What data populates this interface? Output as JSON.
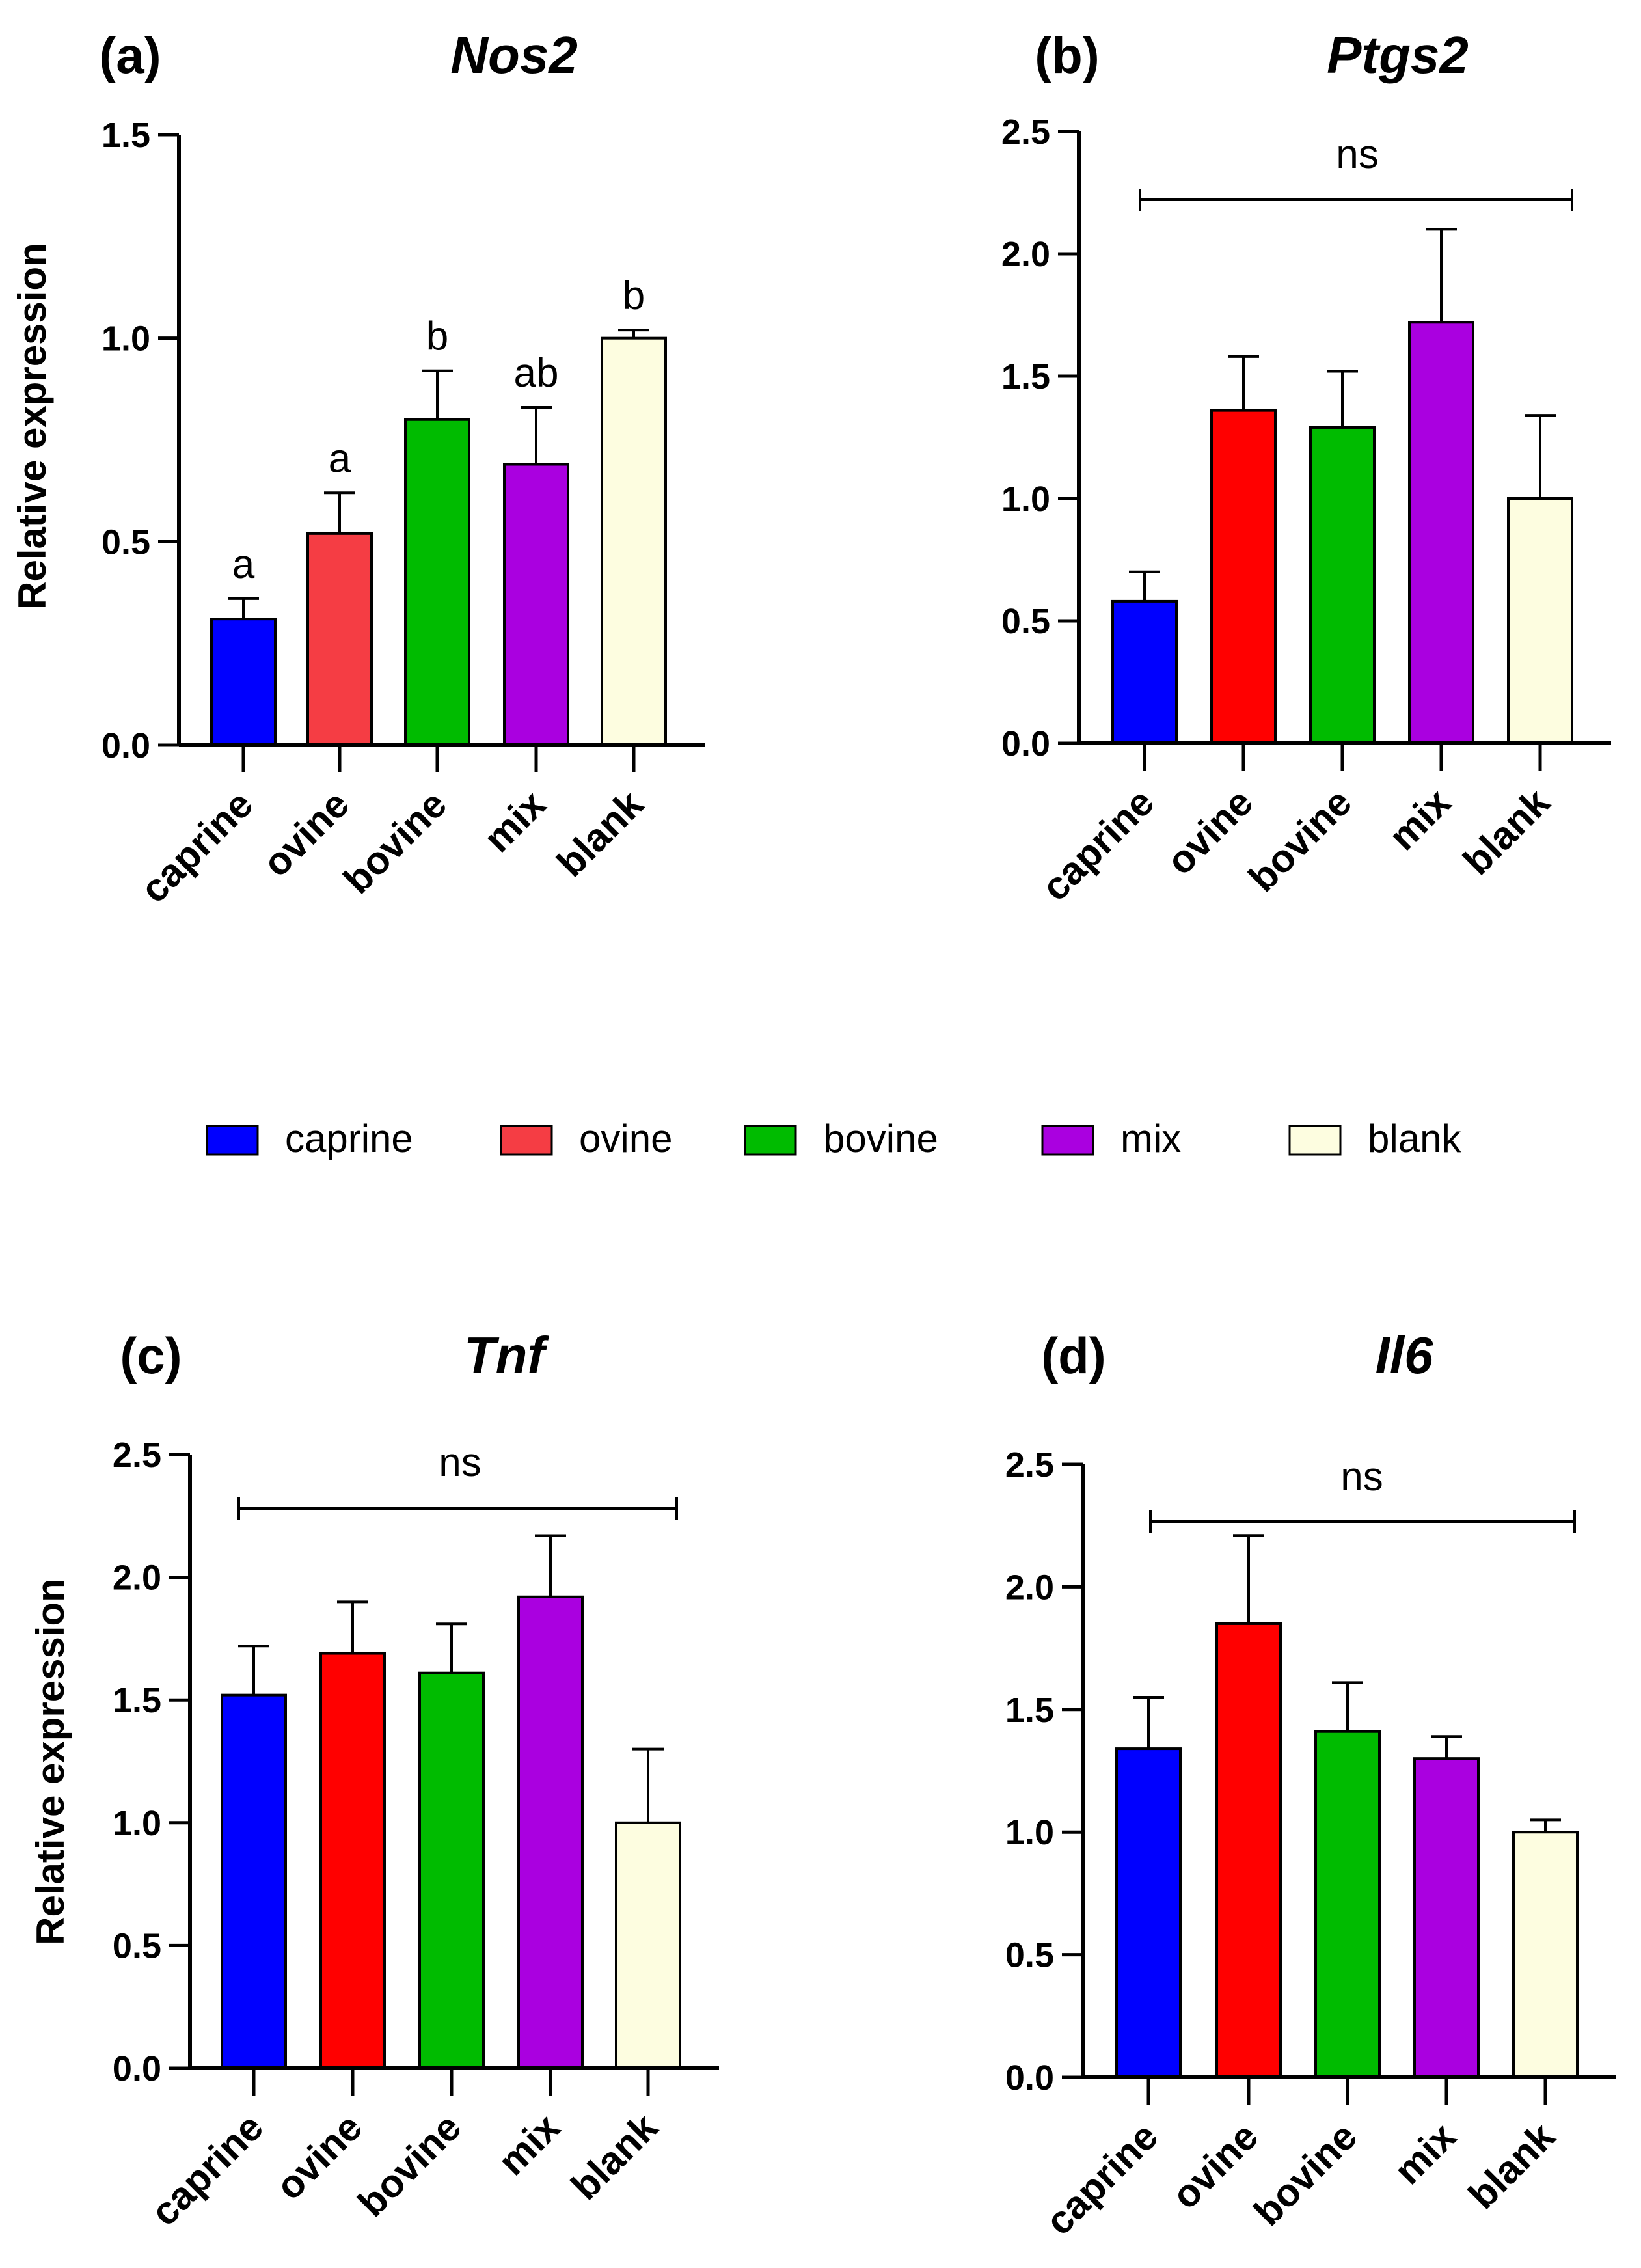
{
  "colors": {
    "caprine": "#0000ff",
    "ovine_a": "#f53d44",
    "ovine": "#ff0000",
    "bovine": "#00bb00",
    "mix": "#aa00e0",
    "blank": "#fdfde0"
  },
  "legend": [
    {
      "label": "caprine",
      "color": "#0000ff"
    },
    {
      "label": "ovine",
      "color": "#f53d44"
    },
    {
      "label": "bovine",
      "color": "#00bb00"
    },
    {
      "label": "mix",
      "color": "#aa00e0"
    },
    {
      "label": "blank",
      "color": "#fdfde0"
    }
  ],
  "chart_data": [
    {
      "panel": "(a)",
      "title": "Nos2",
      "type": "bar",
      "ylabel": "Relative expression",
      "ylim": [
        0,
        1.5
      ],
      "yticks": [
        "0.0",
        "0.5",
        "1.0",
        "1.5"
      ],
      "categories": [
        "caprine",
        "ovine",
        "bovine",
        "mix",
        "blank"
      ],
      "values": [
        0.31,
        0.52,
        0.8,
        0.69,
        1.0
      ],
      "errors": [
        0.05,
        0.1,
        0.12,
        0.14,
        0.02
      ],
      "significance": [
        "a",
        "a",
        "b",
        "ab",
        "b"
      ],
      "colors": [
        "#0000ff",
        "#f53d44",
        "#00bb00",
        "#aa00e0",
        "#fdfde0"
      ]
    },
    {
      "panel": "(b)",
      "title": "Ptgs2",
      "type": "bar",
      "ylabel": "",
      "ylim": [
        0,
        2.5
      ],
      "yticks": [
        "0.0",
        "0.5",
        "1.0",
        "1.5",
        "2.0",
        "2.5"
      ],
      "categories": [
        "caprine",
        "ovine",
        "bovine",
        "mix",
        "blank"
      ],
      "values": [
        0.58,
        1.36,
        1.29,
        1.72,
        1.0
      ],
      "errors": [
        0.12,
        0.22,
        0.23,
        0.38,
        0.34
      ],
      "bracket_label": "ns",
      "colors": [
        "#0000ff",
        "#ff0000",
        "#00bb00",
        "#aa00e0",
        "#fdfde0"
      ]
    },
    {
      "panel": "(c)",
      "title": "Tnf",
      "type": "bar",
      "ylabel": "Relative expression",
      "ylim": [
        0,
        2.5
      ],
      "yticks": [
        "0.0",
        "0.5",
        "1.0",
        "1.5",
        "2.0",
        "2.5"
      ],
      "categories": [
        "caprine",
        "ovine",
        "bovine",
        "mix",
        "blank"
      ],
      "values": [
        1.52,
        1.69,
        1.61,
        1.92,
        1.0
      ],
      "errors": [
        0.2,
        0.21,
        0.2,
        0.25,
        0.3
      ],
      "bracket_label": "ns",
      "colors": [
        "#0000ff",
        "#ff0000",
        "#00bb00",
        "#aa00e0",
        "#fdfde0"
      ]
    },
    {
      "panel": "(d)",
      "title": "Il6",
      "type": "bar",
      "ylabel": "",
      "ylim": [
        0,
        2.5
      ],
      "yticks": [
        "0.0",
        "0.5",
        "1.0",
        "1.5",
        "2.0",
        "2.5"
      ],
      "categories": [
        "caprine",
        "ovine",
        "bovine",
        "mix",
        "blank"
      ],
      "values": [
        1.34,
        1.85,
        1.41,
        1.3,
        1.0
      ],
      "errors": [
        0.21,
        0.36,
        0.2,
        0.09,
        0.05
      ],
      "bracket_label": "ns",
      "colors": [
        "#0000ff",
        "#ff0000",
        "#00bb00",
        "#aa00e0",
        "#fdfde0"
      ]
    }
  ]
}
